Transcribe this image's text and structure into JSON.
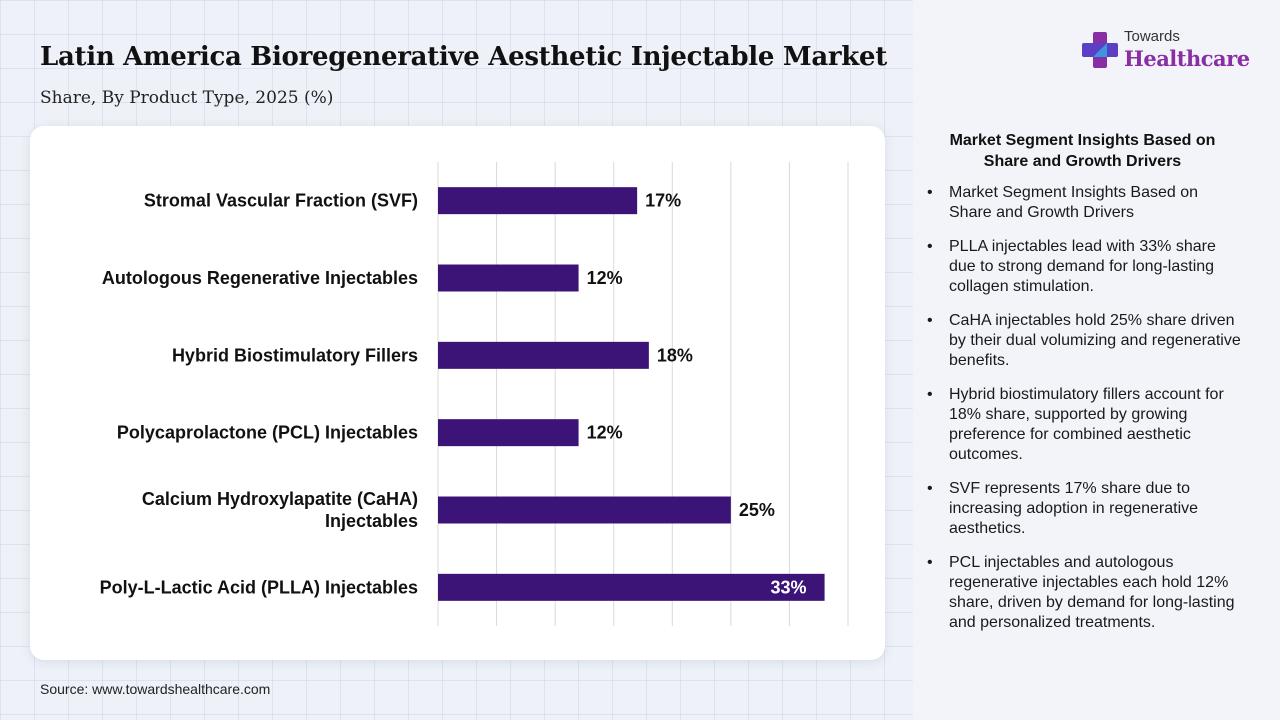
{
  "header": {
    "title": "Latin America Bioregenerative Aesthetic Injectable Market",
    "subtitle": "Share, By Product Type, 2025 (%)"
  },
  "logo": {
    "top_text": "Towards",
    "main_text": "Healthcare",
    "icon": "cross-plus-icon"
  },
  "source": "Source: www.towardshealthcare.com",
  "insights": {
    "title": "Market Segment Insights Based on Share and Growth Drivers",
    "items": [
      "Market Segment Insights Based on Share and Growth Drivers",
      "PLLA injectables lead with 33% share due to strong demand for long-lasting collagen stimulation.",
      "CaHA injectables hold 25% share driven by their dual volumizing and regenerative benefits.",
      "Hybrid biostimulatory fillers account for 18% share, supported by growing preference for combined aesthetic outcomes.",
      "SVF represents 17% share due to increasing adoption in regenerative aesthetics.",
      "PCL injectables and autologous regenerative injectables each hold 12% share, driven by demand for long-lasting and personalized treatments."
    ]
  },
  "colors": {
    "bar": "#3c1478",
    "label_inside": "#ffffff",
    "label_outside": "#111111",
    "grid": "#d9d9d9",
    "logo_accent": "#8a2fa3"
  },
  "chart_data": {
    "type": "bar",
    "orientation": "horizontal",
    "title": "Latin America Bioregenerative Aesthetic Injectable Market",
    "subtitle": "Share, By Product Type, 2025 (%)",
    "categories": [
      [
        "Stromal Vascular Fraction (SVF)"
      ],
      [
        "Autologous Regenerative Injectables"
      ],
      [
        "Hybrid Biostimulatory Fillers"
      ],
      [
        "Polycaprolactone (PCL) Injectables"
      ],
      [
        "Calcium Hydroxylapatite (CaHA)",
        "Injectables"
      ],
      [
        "Poly-L-Lactic Acid (PLLA) Injectables"
      ]
    ],
    "values": [
      17,
      12,
      18,
      12,
      25,
      33
    ],
    "value_labels": [
      "17%",
      "12%",
      "18%",
      "12%",
      "25%",
      "33%"
    ],
    "xlim": [
      0,
      35
    ],
    "grid": true,
    "grid_step": 5,
    "legend": "none"
  }
}
